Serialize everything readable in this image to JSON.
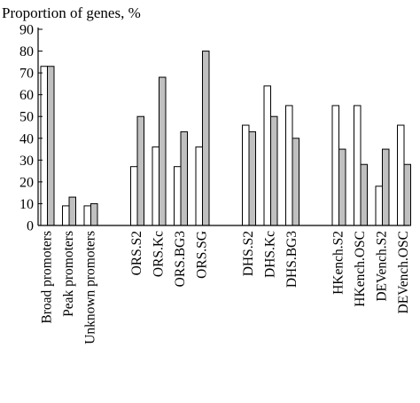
{
  "chart_data": {
    "type": "bar",
    "title": "",
    "xlabel": "",
    "ylabel": "Proportion of genes, %",
    "ylim": [
      0,
      90
    ],
    "yticks": [
      0,
      10,
      20,
      30,
      40,
      50,
      60,
      70,
      80,
      90
    ],
    "grid": false,
    "legend": "none",
    "bar_colors": {
      "open": "#ffffff",
      "gray": "#c0c0c0",
      "stroke": "#000000"
    },
    "groups": [
      [
        "Broad promoters",
        "Peak promoters",
        "Unknown promoters"
      ],
      [
        "ORS.S2",
        "ORS.Kc",
        "ORS.BG3",
        "ORS.SG"
      ],
      [
        "DHS.S2",
        "DHS.Kc",
        "DHS.BG3"
      ],
      [
        "HKench.S2",
        "HKench.OSC",
        "DEVench.S2",
        "DEVench.OSC"
      ]
    ],
    "categories": [
      "Broad promoters",
      "Peak promoters",
      "Unknown promoters",
      "ORS.S2",
      "ORS.Kc",
      "ORS.BG3",
      "ORS.SG",
      "DHS.S2",
      "DHS.Kc",
      "DHS.BG3",
      "HKench.S2",
      "HKench.OSC",
      "DEVench.S2",
      "DEVench.OSC"
    ],
    "series": [
      {
        "values": [
          73,
          9,
          9,
          27,
          36,
          27,
          36,
          46,
          64,
          55,
          55,
          55,
          18,
          46
        ]
      },
      {
        "values": [
          73,
          13,
          10,
          50,
          68,
          43,
          80,
          43,
          50,
          40,
          35,
          28,
          35,
          28
        ]
      }
    ]
  }
}
